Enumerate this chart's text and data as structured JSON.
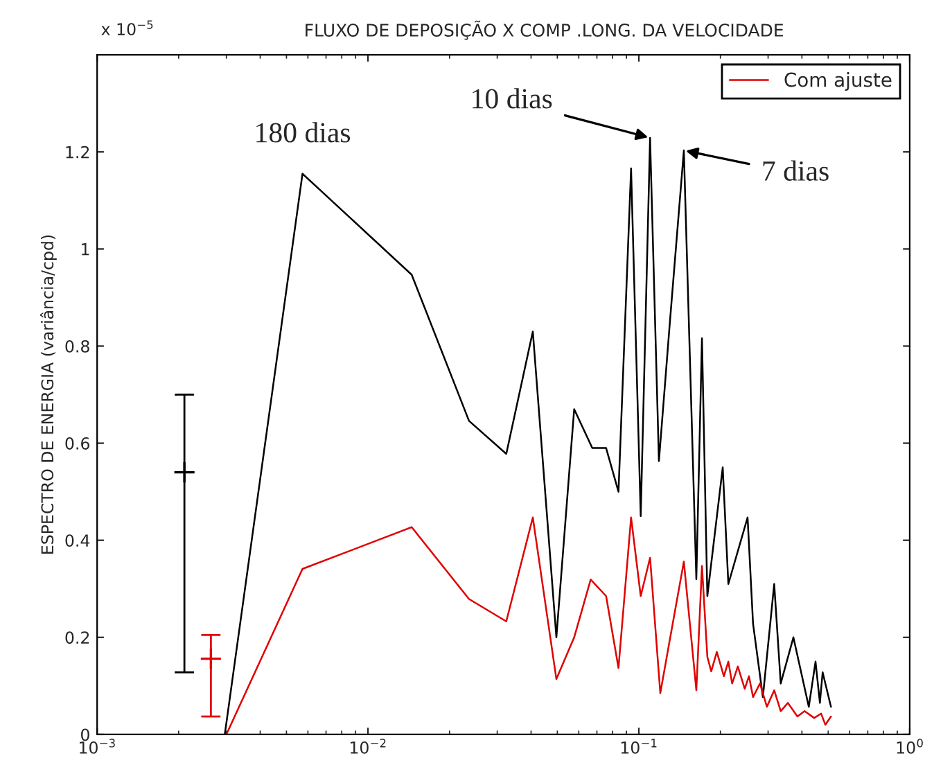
{
  "chart_data": {
    "type": "line",
    "title": "FLUXO DE DEPOSIÇÃO X COMP .LONG. DA VELOCIDADE",
    "ylabel": "ESPECTRO DE ENERGIA (variância/cpd)",
    "log": "x",
    "xlim": [
      0.001,
      1
    ],
    "xticks": [
      {
        "value": 0.001,
        "label": "10$^{−3}$"
      },
      {
        "value": 0.01,
        "label": "10$^{−2}$"
      },
      {
        "value": 0.1,
        "label": "10$^{−1}$"
      },
      {
        "value": 1,
        "label": "10$^{0}$"
      }
    ],
    "ylim": [
      0,
      1.4
    ],
    "yticks": [
      0,
      0.2,
      0.4,
      0.6,
      0.8,
      1,
      1.2
    ],
    "grid": false,
    "legend": "top right",
    "series": [
      {
        "color": "#000000",
        "x": [
          0.00296,
          0.00573,
          0.0145,
          0.0236,
          0.0324,
          0.0406,
          0.0496,
          0.0577,
          0.0673,
          0.0757,
          0.0841,
          0.0936,
          0.1016,
          0.11,
          0.1186,
          0.13,
          0.1466,
          0.163,
          0.171,
          0.179,
          0.204,
          0.214,
          0.252,
          0.264,
          0.287,
          0.316,
          0.334,
          0.372,
          0.424,
          0.449,
          0.466,
          0.477,
          0.512
        ],
        "values": [
          0,
          1.155,
          0.947,
          0.646,
          0.578,
          0.83,
          0.2,
          0.67,
          0.59,
          0.59,
          0.5,
          1.166,
          0.45,
          1.229,
          0.563,
          0.845,
          1.203,
          0.32,
          0.816,
          0.285,
          0.55,
          0.31,
          0.447,
          0.228,
          0.077,
          0.31,
          0.105,
          0.2,
          0.057,
          0.15,
          0.065,
          0.128,
          0.057
        ]
      },
      {
        "name": "Com ajuste",
        "color": "#e00000",
        "x": [
          0.003,
          0.00573,
          0.0145,
          0.0236,
          0.0324,
          0.0406,
          0.0496,
          0.0577,
          0.0664,
          0.0757,
          0.0841,
          0.0936,
          0.1016,
          0.11,
          0.12,
          0.13,
          0.1466,
          0.163,
          0.171,
          0.179,
          0.185,
          0.194,
          0.206,
          0.214,
          0.221,
          0.232,
          0.246,
          0.255,
          0.264,
          0.28,
          0.297,
          0.316,
          0.334,
          0.355,
          0.385,
          0.409,
          0.444,
          0.471,
          0.488,
          0.512
        ],
        "values": [
          0,
          0.341,
          0.427,
          0.279,
          0.233,
          0.447,
          0.114,
          0.2,
          0.319,
          0.285,
          0.137,
          0.447,
          0.285,
          0.364,
          0.085,
          0.194,
          0.356,
          0.091,
          0.347,
          0.16,
          0.13,
          0.17,
          0.12,
          0.15,
          0.105,
          0.14,
          0.094,
          0.12,
          0.077,
          0.105,
          0.057,
          0.091,
          0.048,
          0.065,
          0.037,
          0.048,
          0.034,
          0.043,
          0.02,
          0.037
        ]
      },
      {
        "type": "scatter",
        "marker": "cross",
        "color": "#000000",
        "x": [
          0.0021
        ],
        "values": [
          0.54
        ],
        "errors": [
          [
            0.128,
            0.7
          ]
        ]
      },
      {
        "type": "scatter",
        "marker": "cross",
        "color": "#e00000",
        "x": [
          0.00263
        ],
        "values": [
          0.156
        ],
        "errors": [
          [
            0.037,
            0.205
          ]
        ]
      }
    ],
    "annotations": [
      "x 10$^{−5}$",
      {
        "text": "180 dias",
        "x": 0.00573,
        "y": 1.155
      },
      {
        "text": "10 dias",
        "x": 0.11,
        "y": 1.229
      },
      {
        "text": "7 dias",
        "x": 0.1466,
        "y": 1.203
      }
    ]
  }
}
